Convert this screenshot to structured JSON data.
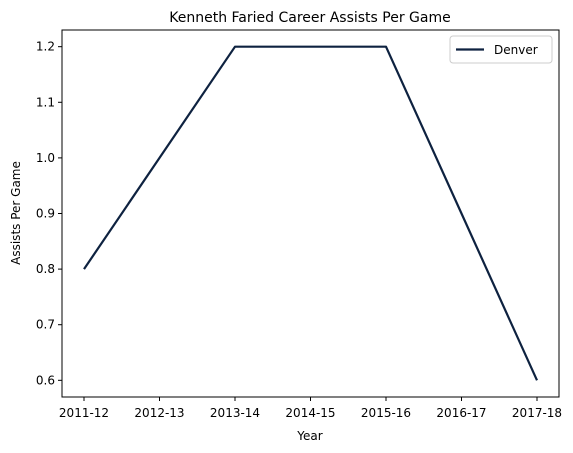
{
  "chart_data": {
    "type": "line",
    "title": "Kenneth Faried Career Assists Per Game",
    "xlabel": "Year",
    "ylabel": "Assists Per Game",
    "categories": [
      "2011-12",
      "2012-13",
      "2013-14",
      "2014-15",
      "2015-16",
      "2016-17",
      "2017-18"
    ],
    "series": [
      {
        "name": "Denver",
        "color": "#0E2240",
        "values": [
          0.8,
          1.0,
          1.2,
          1.2,
          1.2,
          0.9,
          0.6
        ]
      }
    ],
    "ylim": [
      0.57,
      1.23
    ],
    "yticks": [
      0.6,
      0.7,
      0.8,
      0.9,
      1.0,
      1.1,
      1.2
    ],
    "ytick_labels": [
      "0.6",
      "0.7",
      "0.8",
      "0.9",
      "1.0",
      "1.1",
      "1.2"
    ],
    "grid": false,
    "legend_position": "top-right"
  }
}
